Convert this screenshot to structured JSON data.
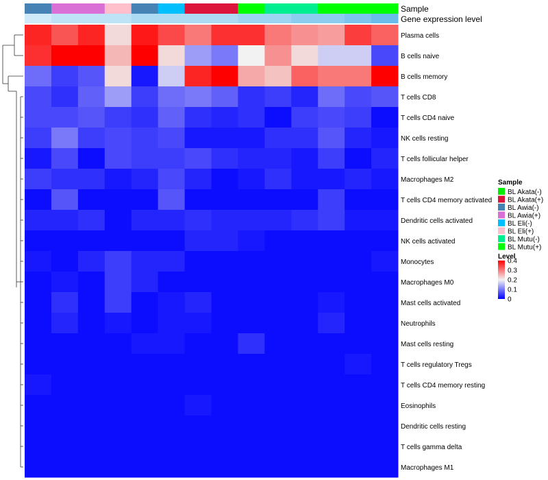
{
  "chart_data": {
    "type": "heatmap",
    "annotation_titles": {
      "sample": "Sample",
      "level": "Gene expression level"
    },
    "columns": [
      {
        "sample": "BL Awia(-)",
        "level": 0.06
      },
      {
        "sample": "BL Awia(+)",
        "level": 0.07
      },
      {
        "sample": "BL Awia(+)",
        "level": 0.07
      },
      {
        "sample": "BL Eli(+)",
        "level": 0.07
      },
      {
        "sample": "BL Awia(-)",
        "level": 0.08
      },
      {
        "sample": "BL Eli(-)",
        "level": 0.08
      },
      {
        "sample": "BL Akata(+)",
        "level": 0.08
      },
      {
        "sample": "BL Akata(+)",
        "level": 0.08
      },
      {
        "sample": "BL Mutu(+)",
        "level": 0.09
      },
      {
        "sample": "BL Mutu(-)",
        "level": 0.09
      },
      {
        "sample": "BL Mutu(-)",
        "level": 0.1
      },
      {
        "sample": "BL Mutu(+)",
        "level": 0.1
      },
      {
        "sample": "BL Mutu(+)",
        "level": 0.11
      },
      {
        "sample": "BL Mutu(+)",
        "level": 0.12
      }
    ],
    "rows": [
      "Plasma cells",
      "B cells naive",
      "B cells memory",
      "T cells CD8",
      "T cells CD4 naive",
      "NK cells resting",
      "T cells follicular helper",
      "Macrophages M2",
      "T cells CD4 memory activated",
      "Dendritic cells activated",
      "NK cells activated",
      "Monocytes",
      "Macrophages M0",
      "Mast cells activated",
      "Neutrophils",
      "Mast cells resting",
      "T cells regulatory  Tregs",
      "T cells CD4 memory resting",
      "Eosinophils",
      "Dendritic cells resting",
      "T cells gamma delta",
      "Macrophages M1"
    ],
    "values": [
      [
        0.37,
        0.33,
        0.37,
        0.22,
        0.38,
        0.34,
        0.3,
        0.36,
        0.36,
        0.3,
        0.28,
        0.27,
        0.35,
        0.32
      ],
      [
        0.36,
        0.4,
        0.4,
        0.25,
        0.4,
        0.22,
        0.13,
        0.1,
        0.2,
        0.28,
        0.22,
        0.17,
        0.17,
        0.06
      ],
      [
        0.09,
        0.05,
        0.07,
        0.22,
        0.02,
        0.17,
        0.37,
        0.4,
        0.26,
        0.24,
        0.32,
        0.3,
        0.3,
        0.4
      ],
      [
        0.06,
        0.04,
        0.08,
        0.13,
        0.05,
        0.09,
        0.1,
        0.08,
        0.04,
        0.05,
        0.03,
        0.09,
        0.06,
        0.07
      ],
      [
        0.06,
        0.06,
        0.07,
        0.05,
        0.04,
        0.08,
        0.04,
        0.03,
        0.04,
        0.01,
        0.05,
        0.06,
        0.05,
        0.01
      ],
      [
        0.05,
        0.1,
        0.05,
        0.06,
        0.05,
        0.06,
        0.02,
        0.02,
        0.02,
        0.04,
        0.04,
        0.07,
        0.03,
        0.02
      ],
      [
        0.02,
        0.06,
        0.01,
        0.06,
        0.05,
        0.05,
        0.06,
        0.04,
        0.03,
        0.03,
        0.02,
        0.05,
        0.01,
        0.03
      ],
      [
        0.05,
        0.04,
        0.04,
        0.02,
        0.03,
        0.06,
        0.03,
        0.01,
        0.02,
        0.04,
        0.02,
        0.02,
        0.03,
        0.02
      ],
      [
        0.01,
        0.07,
        0.01,
        0.01,
        0.01,
        0.07,
        0.01,
        0.01,
        0.01,
        0.01,
        0.01,
        0.05,
        0.01,
        0.01
      ],
      [
        0.03,
        0.03,
        0.04,
        0.01,
        0.03,
        0.03,
        0.04,
        0.03,
        0.03,
        0.03,
        0.04,
        0.05,
        0.02,
        0.02
      ],
      [
        0.01,
        0.01,
        0.01,
        0.01,
        0.01,
        0.01,
        0.03,
        0.03,
        0.02,
        0.01,
        0.01,
        0.01,
        0.01,
        0.01
      ],
      [
        0.02,
        0.01,
        0.03,
        0.05,
        0.03,
        0.03,
        0.01,
        0.01,
        0.01,
        0.01,
        0.01,
        0.01,
        0.01,
        0.02
      ],
      [
        0.01,
        0.02,
        0.01,
        0.05,
        0.03,
        0.01,
        0.01,
        0.01,
        0.01,
        0.01,
        0.01,
        0.01,
        0.01,
        0.01
      ],
      [
        0.01,
        0.04,
        0.01,
        0.05,
        0.01,
        0.02,
        0.03,
        0.01,
        0.01,
        0.01,
        0.01,
        0.02,
        0.01,
        0.01
      ],
      [
        0.01,
        0.03,
        0.01,
        0.02,
        0.01,
        0.02,
        0.02,
        0.01,
        0.01,
        0.01,
        0.01,
        0.03,
        0.01,
        0.01
      ],
      [
        0.01,
        0.01,
        0.01,
        0.01,
        0.02,
        0.02,
        0.01,
        0.01,
        0.04,
        0.01,
        0.01,
        0.01,
        0.01,
        0.01
      ],
      [
        0.01,
        0.01,
        0.01,
        0.01,
        0.01,
        0.01,
        0.01,
        0.01,
        0.01,
        0.01,
        0.01,
        0.01,
        0.02,
        0.01
      ],
      [
        0.02,
        0.01,
        0.01,
        0.01,
        0.01,
        0.01,
        0.01,
        0.01,
        0.01,
        0.01,
        0.01,
        0.01,
        0.01,
        0.01
      ],
      [
        0.01,
        0.01,
        0.01,
        0.01,
        0.01,
        0.01,
        0.02,
        0.01,
        0.01,
        0.01,
        0.01,
        0.01,
        0.01,
        0.01
      ],
      [
        0.01,
        0.01,
        0.01,
        0.01,
        0.01,
        0.01,
        0.01,
        0.01,
        0.01,
        0.01,
        0.01,
        0.01,
        0.01,
        0.01
      ],
      [
        0.01,
        0.01,
        0.01,
        0.01,
        0.01,
        0.01,
        0.01,
        0.01,
        0.01,
        0.01,
        0.01,
        0.01,
        0.01,
        0.01
      ],
      [
        0.01,
        0.01,
        0.01,
        0.01,
        0.01,
        0.01,
        0.01,
        0.01,
        0.01,
        0.01,
        0.01,
        0.01,
        0.01,
        0.01
      ]
    ],
    "scale": {
      "min": 0,
      "mid": 0.2,
      "max": 0.4,
      "colors": {
        "low": "#0000ff",
        "mid": "#f2f2f2",
        "high": "#ff0000"
      }
    },
    "legend": {
      "placement": "right",
      "sample_title": "Sample",
      "samples": [
        {
          "label": "BL Akata(-)",
          "color": "#00ee00"
        },
        {
          "label": "BL Akata(+)",
          "color": "#dc143c"
        },
        {
          "label": "BL Awia(-)",
          "color": "#4682b4"
        },
        {
          "label": "BL Awia(+)",
          "color": "#da70d6"
        },
        {
          "label": "BL Eli(-)",
          "color": "#00bfff"
        },
        {
          "label": "BL Eli(+)",
          "color": "#ffc0cb"
        },
        {
          "label": "BL Mutu(-)",
          "color": "#00ee90"
        },
        {
          "label": "BL Mutu(+)",
          "color": "#00ff00"
        }
      ],
      "level_title": "Level",
      "level_ticks": [
        0.4,
        0.3,
        0.2,
        0.1,
        0
      ],
      "level_annotation_colors": {
        "low": "#e0f3fb",
        "high": "#5ab4e8"
      }
    },
    "dendrogram": "rows"
  }
}
